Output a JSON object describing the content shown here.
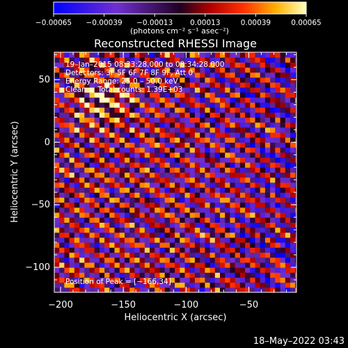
{
  "chart_data": {
    "type": "heatmap",
    "title": "Reconstructed RHESSI Image",
    "xlabel": "Heliocentric X (arcsec)",
    "ylabel": "Heliocentric Y (arcsec)",
    "xlim": [
      -205,
      -12
    ],
    "ylim": [
      -120,
      72
    ],
    "x_ticks": [
      -200,
      -150,
      -100,
      -50
    ],
    "y_ticks": [
      50,
      0,
      -50,
      -100
    ],
    "x_tick_labels": [
      "−200",
      "−150",
      "−100",
      "−50"
    ],
    "y_tick_labels": [
      "50",
      "0",
      "−50",
      "−100"
    ],
    "colorbar": {
      "min": -0.00065,
      "max": 0.00065,
      "ticks": [
        -0.00065,
        -0.00039,
        -0.00013,
        0.00013,
        0.00039,
        0.00065
      ],
      "tick_labels": [
        "−0.00065",
        "−0.00039",
        "−0.00013",
        "0.00013",
        "0.00039",
        "0.00065"
      ],
      "units_label": "(photons cm⁻² s⁻¹ asec⁻²)"
    },
    "annotations": [
      "19–Jan–2015 08:33:28.000 to 08:34:28.000",
      "Detectors: 3F 5F 6F 7F 8F 9F, Att 0",
      "Energy Range: 25.0 – 50.0 keV",
      "Clean     Total counts: 1.39E+03"
    ],
    "peak_label": "Position of Peak = [−166,34]",
    "peak": [
      -166,
      34
    ],
    "stripe_angle_deg": 60,
    "stripe_spacing_arcsec": 11
  },
  "footer": {
    "timestamp": "18–May–2022 03:43"
  }
}
